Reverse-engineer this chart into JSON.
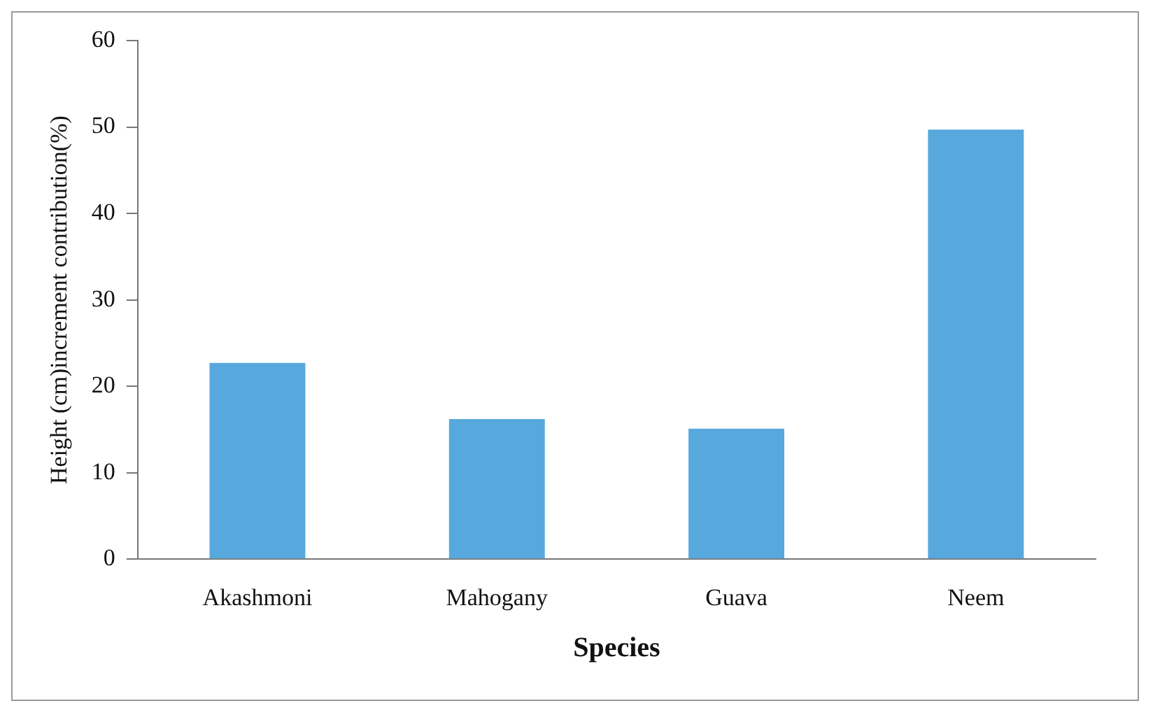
{
  "chart_data": {
    "type": "bar",
    "xlabel": "Species",
    "ylabel": "Height (cm)increment contribution(%)",
    "categories": [
      "Akashmoni",
      "Mahogany",
      "Guava",
      "Neem"
    ],
    "values": [
      22.7,
      16.2,
      15.1,
      49.7
    ],
    "color": "#57a8dc",
    "ylim": [
      0,
      60
    ],
    "yticks": [
      0,
      10,
      20,
      30,
      40,
      50,
      60
    ],
    "grid": false,
    "legend": false
  }
}
